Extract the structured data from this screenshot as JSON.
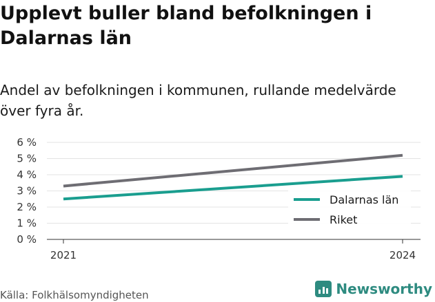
{
  "header": {
    "title": "Upplevt buller bland befolkningen i Dalarnas län",
    "subtitle": "Andel av befolkningen i kommunen, rullande medelvärde över fyra år."
  },
  "chart_data": {
    "type": "line",
    "x": [
      "2021",
      "2024"
    ],
    "series": [
      {
        "name": "Dalarnas län",
        "values": [
          2.5,
          3.9
        ],
        "color": "#1a9e8f"
      },
      {
        "name": "Riket",
        "values": [
          3.3,
          5.2
        ],
        "color": "#6e6d73"
      }
    ],
    "ylim": [
      0,
      6
    ],
    "yticks": [
      "0 %",
      "1 %",
      "2 %",
      "3 %",
      "4 %",
      "5 %",
      "6 %"
    ],
    "grid": true,
    "legend_position": "bottom-right"
  },
  "footer": {
    "source": "Källa: Folkhälsomyndigheten",
    "brand": "Newsworthy",
    "brand_icon": "bar-chart-logo-icon"
  }
}
